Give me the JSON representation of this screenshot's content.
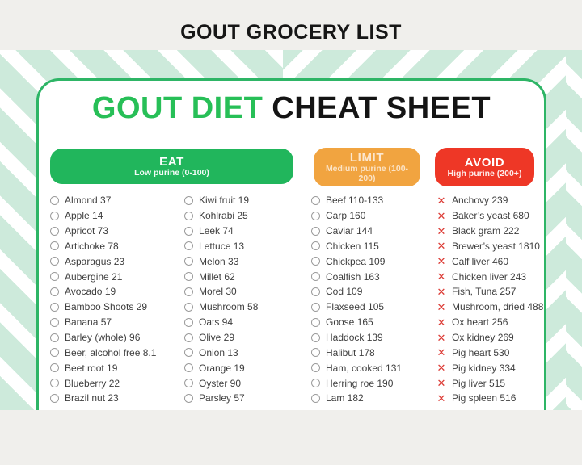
{
  "page": {
    "title": "GOUT GROCERY LIST"
  },
  "card": {
    "title_green": "GOUT DIET",
    "title_black": "CHEAT SHEET"
  },
  "colors": {
    "eat_green": "#21b65c",
    "limit_amber": "#f1a440",
    "avoid_red": "#ee3726",
    "title_green": "#27bf57",
    "card_border_green": "#2eb566",
    "stripe_mint": "#cdeadb",
    "x_icon_red": "#dc3a34"
  },
  "eat": {
    "label": "EAT",
    "sublabel": "Low purine (0-100)",
    "items_col1": [
      "Almond 37",
      "Apple 14",
      "Apricot 73",
      "Artichoke 78",
      "Asparagus 23",
      "Aubergine 21",
      "Avocado 19",
      "Bamboo Shoots 29",
      "Banana 57",
      "Barley (whole) 96",
      "Beer, alcohol free 8.1",
      "Beet root 19",
      "Blueberry 22",
      "Brazil nut 23"
    ],
    "items_col2": [
      "Kiwi fruit 19",
      "Kohlrabi 25",
      "Leek 74",
      "Lettuce 13",
      "Melon 33",
      "Millet 62",
      "Morel 30",
      "Mushroom 58",
      "Oats 94",
      "Olive 29",
      "Onion 13",
      "Orange 19",
      "Oyster 90",
      "Parsley 57"
    ]
  },
  "limit": {
    "label": "LIMIT",
    "sublabel": "Medium purine (100-200)",
    "items": [
      "Beef 110-133",
      "Carp 160",
      "Caviar 144",
      "Chicken 115",
      "Chickpea 109",
      "Coalfish 163",
      "Cod 109",
      "Flaxseed 105",
      "Goose 165",
      "Haddock 139",
      "Halibut 178",
      "Ham, cooked 131",
      "Herring roe 190",
      "Lam 182"
    ]
  },
  "avoid": {
    "label": "AVOID",
    "sublabel": "High purine (200+)",
    "items": [
      "Anchovy 239",
      "Baker’s yeast 680",
      "Black gram 222",
      "Brewer’s yeast 1810",
      "Calf liver 460",
      "Chicken liver 243",
      "Fish, Tuna 257",
      "Mushroom, dried 488",
      "Ox heart 256",
      "Ox kidney 269",
      "Pig heart 530",
      "Pig kidney 334",
      "Pig liver 515",
      "Pig spleen 516"
    ]
  }
}
